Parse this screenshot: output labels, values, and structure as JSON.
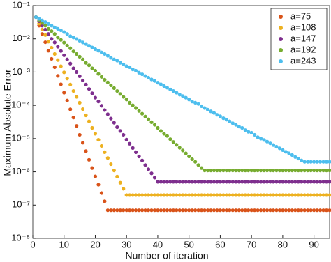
{
  "chart_data": {
    "type": "scatter",
    "xlabel": "Number of iteration",
    "ylabel": "Maximum Absolute Error",
    "xlim": [
      0,
      95
    ],
    "xticks": [
      0,
      10,
      20,
      30,
      40,
      50,
      60,
      70,
      80,
      90
    ],
    "ylim": [
      1e-08,
      0.1
    ],
    "log_y": true,
    "yticks": [
      {
        "value": 1e-08,
        "label": "10⁻⁸"
      },
      {
        "value": 1e-07,
        "label": "10⁻⁷"
      },
      {
        "value": 1e-06,
        "label": "10⁻⁶"
      },
      {
        "value": 1e-05,
        "label": "10⁻⁵"
      },
      {
        "value": 0.0001,
        "label": "10⁻⁴"
      },
      {
        "value": 0.001,
        "label": "10⁻³"
      },
      {
        "value": 0.01,
        "label": "10⁻²"
      },
      {
        "value": 0.1,
        "label": "10⁻¹"
      }
    ],
    "legend": "upper right",
    "x": [
      1,
      2,
      3,
      4,
      5,
      6,
      7,
      8,
      9,
      10,
      11,
      12,
      13,
      14,
      15,
      16,
      17,
      18,
      19,
      20,
      21,
      22,
      23,
      24,
      25,
      26,
      27,
      28,
      29,
      30,
      31,
      32,
      33,
      34,
      35,
      36,
      37,
      38,
      39,
      40,
      41,
      42,
      43,
      44,
      45,
      46,
      47,
      48,
      49,
      50,
      51,
      52,
      53,
      54,
      55,
      56,
      57,
      58,
      59,
      60,
      61,
      62,
      63,
      64,
      65,
      66,
      67,
      68,
      69,
      70,
      71,
      72,
      73,
      74,
      75,
      76,
      77,
      78,
      79,
      80,
      81,
      82,
      83,
      84,
      85,
      86,
      87,
      88,
      89,
      90,
      91,
      92,
      93,
      94,
      95
    ],
    "series": [
      {
        "name": "a=75",
        "color": "#d95319",
        "values": [
          0.045,
          0.025,
          0.014,
          0.0079,
          0.0044,
          0.0025,
          0.0014,
          0.00077,
          0.00043,
          0.00024,
          0.00014,
          7.6e-05,
          4.3e-05,
          2.4e-05,
          1.3e-05,
          7.5e-06,
          4.2e-06,
          2.3e-06,
          1.3e-06,
          7.3e-07,
          4.1e-07,
          2.3e-07,
          1.3e-07,
          7e-08,
          7e-08,
          7e-08,
          7e-08,
          7e-08,
          7e-08,
          7e-08,
          7e-08,
          7e-08,
          7e-08,
          7e-08,
          7e-08,
          7e-08,
          7e-08,
          7e-08,
          7e-08,
          7e-08,
          7e-08,
          7e-08,
          7e-08,
          7e-08,
          7e-08,
          7e-08,
          7e-08,
          7e-08,
          7e-08,
          7e-08,
          7e-08,
          7e-08,
          7e-08,
          7e-08,
          7e-08,
          7e-08,
          7e-08,
          7e-08,
          7e-08,
          7e-08,
          7e-08,
          7e-08,
          7e-08,
          7e-08,
          7e-08,
          7e-08,
          7e-08,
          7e-08,
          7e-08,
          7e-08,
          7e-08,
          7e-08,
          7e-08,
          7e-08,
          7e-08,
          7e-08,
          7e-08,
          7e-08,
          7e-08,
          7e-08,
          7e-08,
          7e-08,
          7e-08,
          7e-08,
          7e-08,
          7e-08,
          7e-08,
          7e-08,
          7e-08,
          7e-08,
          7e-08,
          7e-08,
          7e-08,
          7e-08,
          7e-08
        ]
      },
      {
        "name": "a=108",
        "color": "#edb120",
        "values": [
          0.045,
          0.029,
          0.019,
          0.013,
          0.0082,
          0.0054,
          0.0035,
          0.0023,
          0.0015,
          0.00098,
          0.00064,
          0.00042,
          0.00027,
          0.00018,
          0.00012,
          7.7e-05,
          5e-05,
          3.3e-05,
          2.1e-05,
          1.4e-05,
          9.2e-06,
          6e-06,
          3.9e-06,
          2.6e-06,
          1.7e-06,
          1.1e-06,
          7.2e-07,
          4.7e-07,
          3.1e-07,
          2e-07,
          2e-07,
          2e-07,
          2e-07,
          2e-07,
          2e-07,
          2e-07,
          2e-07,
          2e-07,
          2e-07,
          2e-07,
          2e-07,
          2e-07,
          2e-07,
          2e-07,
          2e-07,
          2e-07,
          2e-07,
          2e-07,
          2e-07,
          2e-07,
          2e-07,
          2e-07,
          2e-07,
          2e-07,
          2e-07,
          2e-07,
          2e-07,
          2e-07,
          2e-07,
          2e-07,
          2e-07,
          2e-07,
          2e-07,
          2e-07,
          2e-07,
          2e-07,
          2e-07,
          2e-07,
          2e-07,
          2e-07,
          2e-07,
          2e-07,
          2e-07,
          2e-07,
          2e-07,
          2e-07,
          2e-07,
          2e-07,
          2e-07,
          2e-07,
          2e-07,
          2e-07,
          2e-07,
          2e-07,
          2e-07,
          2e-07,
          2e-07,
          2e-07,
          2e-07,
          2e-07,
          2e-07,
          2e-07,
          2e-07,
          2e-07,
          2e-07
        ]
      },
      {
        "name": "a=147",
        "color": "#7e2f8e",
        "values": [
          0.045,
          0.034,
          0.025,
          0.019,
          0.014,
          0.01,
          0.0078,
          0.0058,
          0.0043,
          0.0032,
          0.0024,
          0.0018,
          0.0013,
          0.001,
          0.00075,
          0.00056,
          0.00042,
          0.00031,
          0.00023,
          0.00017,
          0.00013,
          9.7e-05,
          7.2e-05,
          5.4e-05,
          4e-05,
          3e-05,
          2.2e-05,
          1.7e-05,
          1.3e-05,
          9.3e-06,
          7e-06,
          5.2e-06,
          3.9e-06,
          2.9e-06,
          2.2e-06,
          1.6e-06,
          1.2e-06,
          9e-07,
          6.7e-07,
          5e-07,
          5e-07,
          5e-07,
          5e-07,
          5e-07,
          5e-07,
          5e-07,
          5e-07,
          5e-07,
          5e-07,
          5e-07,
          5e-07,
          5e-07,
          5e-07,
          5e-07,
          5e-07,
          5e-07,
          5e-07,
          5e-07,
          5e-07,
          5e-07,
          5e-07,
          5e-07,
          5e-07,
          5e-07,
          5e-07,
          5e-07,
          5e-07,
          5e-07,
          5e-07,
          5e-07,
          5e-07,
          5e-07,
          5e-07,
          5e-07,
          5e-07,
          5e-07,
          5e-07,
          5e-07,
          5e-07,
          5e-07,
          5e-07,
          5e-07,
          5e-07,
          5e-07,
          5e-07,
          5e-07,
          5e-07,
          5e-07,
          5e-07,
          5e-07,
          5e-07,
          5e-07,
          5e-07,
          5e-07,
          5e-07
        ]
      },
      {
        "name": "a=192",
        "color": "#77ac30",
        "values": [
          0.045,
          0.037,
          0.03,
          0.025,
          0.02,
          0.017,
          0.014,
          0.011,
          0.0093,
          0.0077,
          0.0063,
          0.0052,
          0.0042,
          0.0035,
          0.0029,
          0.0024,
          0.0019,
          0.0016,
          0.0013,
          0.0011,
          0.00088,
          0.00072,
          0.00059,
          0.00049,
          0.0004,
          0.00033,
          0.00027,
          0.00022,
          0.00018,
          0.00015,
          0.00012,
          0.0001,
          8.3e-05,
          6.8e-05,
          5.6e-05,
          4.6e-05,
          3.8e-05,
          3.1e-05,
          2.6e-05,
          2.1e-05,
          1.7e-05,
          1.4e-05,
          1.2e-05,
          9.6e-06,
          7.9e-06,
          6.5e-06,
          5.3e-06,
          4.4e-06,
          3.6e-06,
          2.9e-06,
          2.4e-06,
          2e-06,
          1.6e-06,
          1.3e-06,
          1.1e-06,
          1.1e-06,
          1.1e-06,
          1.1e-06,
          1.1e-06,
          1.1e-06,
          1.1e-06,
          1.1e-06,
          1.1e-06,
          1.1e-06,
          1.1e-06,
          1.1e-06,
          1.1e-06,
          1.1e-06,
          1.1e-06,
          1.1e-06,
          1.1e-06,
          1.1e-06,
          1.1e-06,
          1.1e-06,
          1.1e-06,
          1.1e-06,
          1.1e-06,
          1.1e-06,
          1.1e-06,
          1.1e-06,
          1.1e-06,
          1.1e-06,
          1.1e-06,
          1.1e-06,
          1.1e-06,
          1.1e-06,
          1.1e-06,
          1.1e-06,
          1.1e-06,
          1.1e-06,
          1.1e-06,
          1.1e-06,
          1.1e-06,
          1.1e-06,
          1.1e-06
        ]
      },
      {
        "name": "a=243",
        "color": "#4dbeee",
        "values": [
          0.045,
          0.04,
          0.036,
          0.032,
          0.028,
          0.025,
          0.022,
          0.02,
          0.018,
          0.016,
          0.014,
          0.012,
          0.011,
          0.0099,
          0.0088,
          0.0078,
          0.007,
          0.0062,
          0.0055,
          0.0049,
          0.0044,
          0.0039,
          0.0035,
          0.0031,
          0.0027,
          0.0024,
          0.0022,
          0.0019,
          0.0017,
          0.0015,
          0.0014,
          0.0012,
          0.0011,
          0.00096,
          0.00086,
          0.00076,
          0.00068,
          0.0006,
          0.00054,
          0.00048,
          0.00043,
          0.00038,
          0.00034,
          0.0003,
          0.00027,
          0.00024,
          0.00021,
          0.00019,
          0.00017,
          0.00015,
          0.00013,
          0.00012,
          0.00011,
          9.4e-05,
          8.3e-05,
          7.4e-05,
          6.6e-05,
          5.9e-05,
          5.2e-05,
          4.7e-05,
          4.1e-05,
          3.7e-05,
          3.3e-05,
          2.9e-05,
          2.6e-05,
          2.3e-05,
          2.1e-05,
          1.8e-05,
          1.6e-05,
          1.5e-05,
          1.3e-05,
          1.1e-05,
          1e-05,
          9.1e-06,
          8.1e-06,
          7.2e-06,
          6.4e-06,
          5.7e-06,
          5.1e-06,
          4.5e-06,
          4e-06,
          3.6e-06,
          3.2e-06,
          2.8e-06,
          2.5e-06,
          2.2e-06,
          2e-06,
          2e-06,
          2e-06,
          2e-06,
          2e-06,
          2e-06,
          2e-06,
          2e-06,
          2e-06
        ]
      }
    ]
  }
}
